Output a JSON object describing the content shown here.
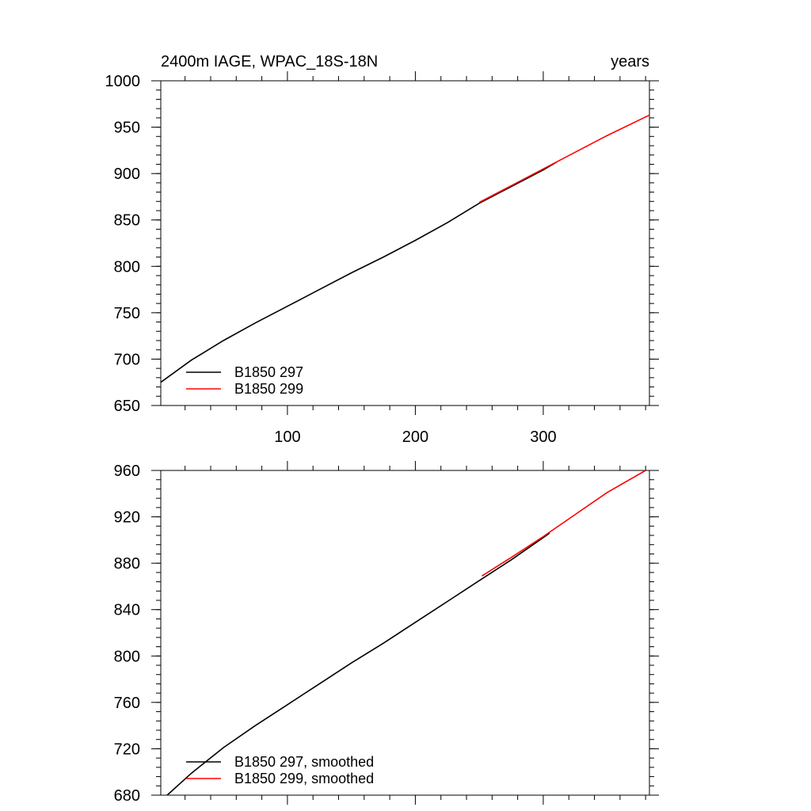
{
  "chart_data": [
    {
      "type": "line",
      "title": "2400m IAGE, WPAC_18S-18N",
      "title_right": "years",
      "xlabel": "",
      "ylabel": "",
      "xlim": [
        1,
        383
      ],
      "ylim": [
        650,
        1000
      ],
      "yticks": [
        650,
        700,
        750,
        800,
        850,
        900,
        950,
        1000
      ],
      "xticks": [
        100,
        200,
        300
      ],
      "x_tick_labels_position": "bottom",
      "grid": false,
      "legend_position": "bottom-left",
      "series": [
        {
          "name": "B1850 297",
          "color": "#000000",
          "x": [
            1,
            25,
            50,
            75,
            100,
            125,
            150,
            175,
            200,
            225,
            250,
            275,
            300,
            310
          ],
          "y": [
            675,
            699,
            720,
            739,
            757,
            775,
            793,
            810,
            828,
            847,
            868,
            886,
            904,
            912
          ]
        },
        {
          "name": "B1850 299",
          "color": "#ff0000",
          "x": [
            250,
            275,
            300,
            325,
            350,
            383
          ],
          "y": [
            869,
            887,
            905,
            923,
            941,
            963
          ]
        }
      ]
    },
    {
      "type": "line",
      "title": "",
      "xlabel": "",
      "ylabel": "",
      "xlim": [
        1,
        383
      ],
      "ylim": [
        680,
        960
      ],
      "yticks": [
        680,
        720,
        760,
        800,
        840,
        880,
        920,
        960
      ],
      "xticks": [
        100,
        200,
        300
      ],
      "grid": false,
      "legend_position": "bottom-left",
      "series": [
        {
          "name": "B1850 297, smoothed",
          "color": "#000000",
          "x": [
            6,
            25,
            50,
            75,
            100,
            125,
            150,
            175,
            200,
            225,
            250,
            275,
            300,
            305
          ],
          "y": [
            680,
            699,
            721,
            740,
            758,
            776,
            794,
            811,
            829,
            847,
            865,
            883,
            902,
            906
          ]
        },
        {
          "name": "B1850 299, smoothed",
          "color": "#ff0000",
          "x": [
            252,
            275,
            300,
            325,
            350,
            380
          ],
          "y": [
            869,
            885,
            903,
            922,
            941,
            960
          ]
        }
      ]
    }
  ]
}
